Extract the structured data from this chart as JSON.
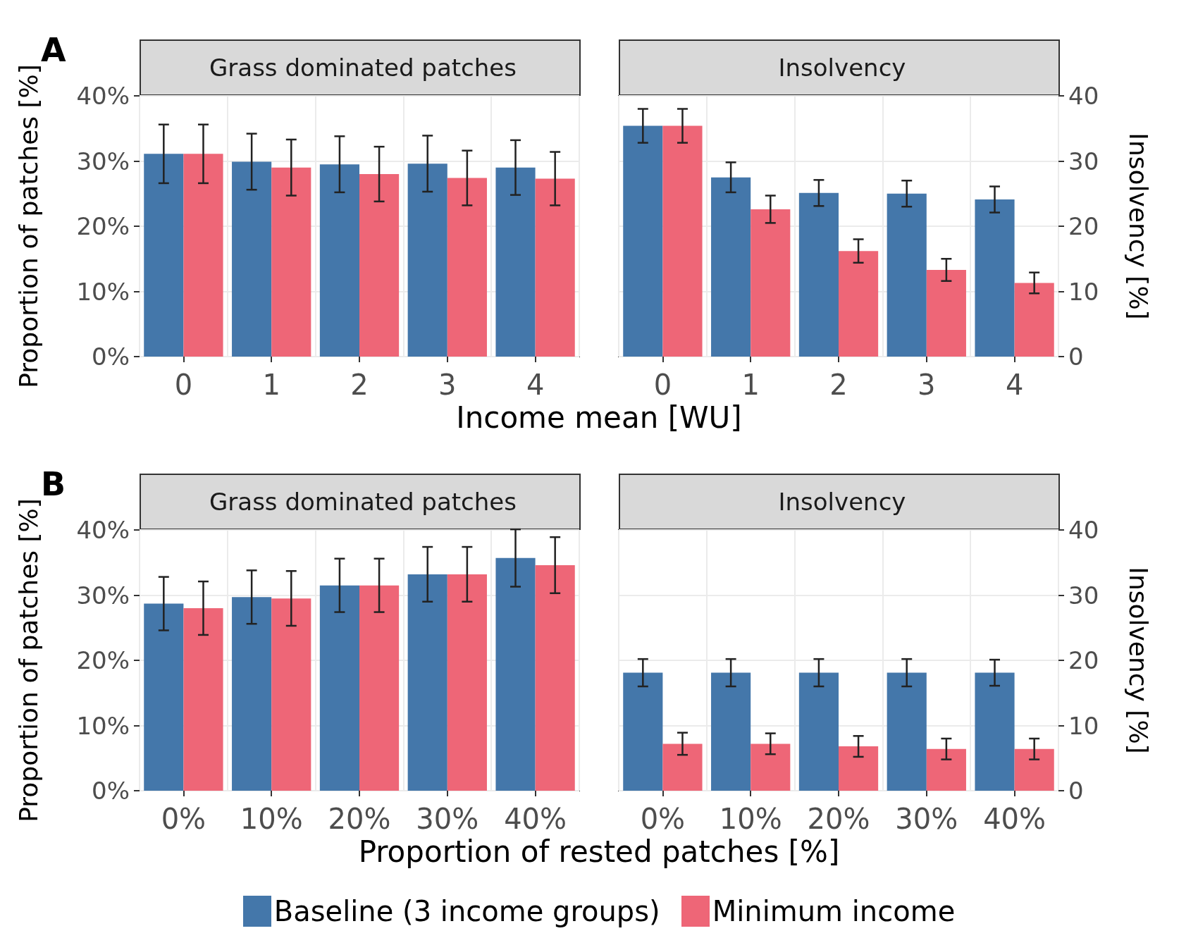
{
  "chart_data": [
    {
      "type": "bar",
      "title": "Grass dominated patches",
      "annotations": [
        "A"
      ],
      "xlabel": "Income mean [WU]",
      "ylabel": "Proportion of patches [%]",
      "categories": [
        "0",
        "1",
        "2",
        "3",
        "4"
      ],
      "series": [
        {
          "color": "#4477aa",
          "values": [
            31.1,
            29.9,
            29.5,
            29.6,
            29.0
          ],
          "errors": [
            4.5,
            4.3,
            4.3,
            4.3,
            4.2
          ]
        },
        {
          "color": "#ee6677",
          "values": [
            31.1,
            29.0,
            28.0,
            27.4,
            27.3
          ],
          "errors": [
            4.5,
            4.3,
            4.2,
            4.2,
            4.1
          ]
        }
      ],
      "ylim": [
        0,
        40
      ],
      "yticks": [
        {
          "value": 0,
          "label": "0%"
        },
        {
          "value": 10,
          "label": "10%"
        },
        {
          "value": 20,
          "label": "20%"
        },
        {
          "value": 30,
          "label": "30%"
        },
        {
          "value": 40,
          "label": "40%"
        }
      ],
      "grid": true
    },
    {
      "type": "bar",
      "title": "Insolvency",
      "y2label": "Insolvency [%]",
      "categories": [
        "0",
        "1",
        "2",
        "3",
        "4"
      ],
      "series": [
        {
          "color": "#4477aa",
          "axis": "y2",
          "values": [
            35.4,
            27.5,
            25.1,
            25.0,
            24.1
          ],
          "errors": [
            2.6,
            2.3,
            2.0,
            2.0,
            2.0
          ]
        },
        {
          "color": "#ee6677",
          "axis": "y2",
          "values": [
            35.4,
            22.6,
            16.2,
            13.3,
            11.3
          ],
          "errors": [
            2.6,
            2.1,
            1.8,
            1.7,
            1.6
          ]
        }
      ],
      "y2lim": [
        0,
        40
      ],
      "y2ticks": [
        0,
        10,
        20,
        30,
        40
      ],
      "grid": true
    },
    {
      "type": "bar",
      "title": "Grass dominated patches",
      "annotations": [
        "B"
      ],
      "xlabel": "Proportion of rested patches [%]",
      "ylabel": "Proportion of patches [%]",
      "categories": [
        "0%",
        "10%",
        "20%",
        "30%",
        "40%"
      ],
      "series": [
        {
          "color": "#4477aa",
          "values": [
            28.7,
            29.7,
            31.5,
            33.2,
            35.7
          ],
          "errors": [
            4.1,
            4.1,
            4.1,
            4.2,
            4.4
          ]
        },
        {
          "color": "#ee6677",
          "values": [
            28.0,
            29.5,
            31.5,
            33.2,
            34.6
          ],
          "errors": [
            4.1,
            4.2,
            4.1,
            4.2,
            4.3
          ]
        }
      ],
      "ylim": [
        0,
        40
      ],
      "yticks": [
        {
          "value": 0,
          "label": "0%"
        },
        {
          "value": 10,
          "label": "10%"
        },
        {
          "value": 20,
          "label": "20%"
        },
        {
          "value": 30,
          "label": "30%"
        },
        {
          "value": 40,
          "label": "40%"
        }
      ],
      "grid": true
    },
    {
      "type": "bar",
      "title": "Insolvency",
      "y2label": "Insolvency [%]",
      "categories": [
        "0%",
        "10%",
        "20%",
        "30%",
        "40%"
      ],
      "series": [
        {
          "name": "Baseline (3 income groups)",
          "color": "#4477aa",
          "axis": "y2",
          "values": [
            18.1,
            18.1,
            18.1,
            18.1,
            18.1
          ],
          "errors": [
            2.1,
            2.1,
            2.1,
            2.1,
            2.0
          ]
        },
        {
          "name": "Minimum income",
          "color": "#ee6677",
          "axis": "y2",
          "values": [
            7.2,
            7.2,
            6.8,
            6.4,
            6.4
          ],
          "errors": [
            1.7,
            1.6,
            1.6,
            1.6,
            1.6
          ]
        }
      ],
      "y2lim": [
        0,
        40
      ],
      "y2ticks": [
        0,
        10,
        20,
        30,
        40
      ],
      "grid": true,
      "legend": "bottom"
    }
  ]
}
